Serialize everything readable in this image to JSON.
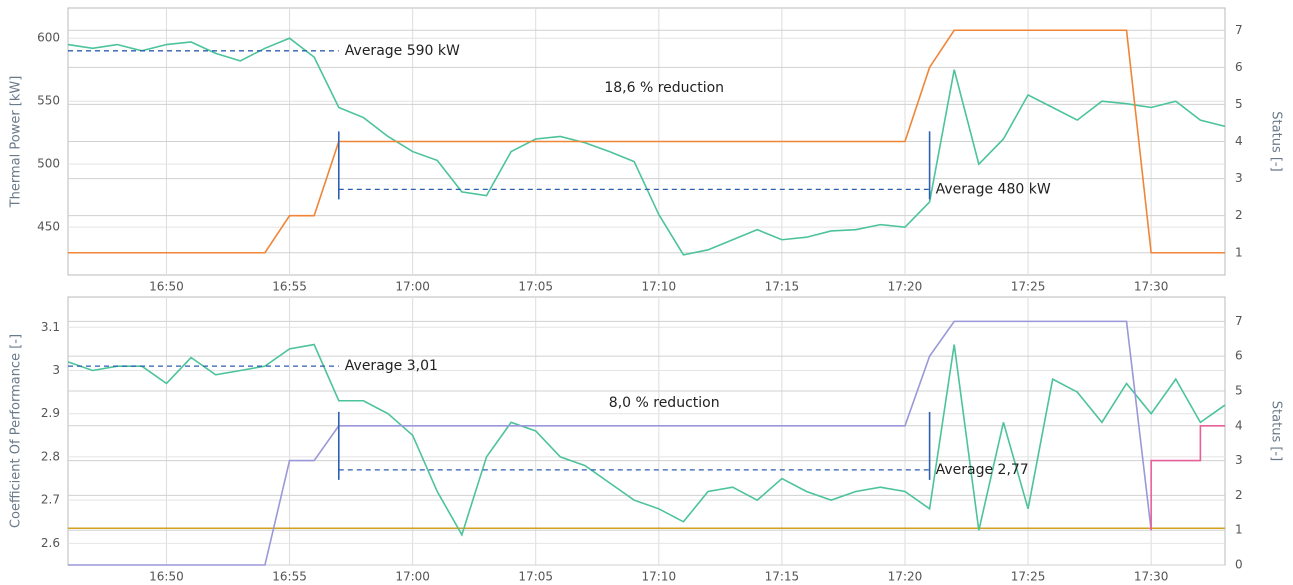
{
  "chart_data": [
    {
      "type": "line",
      "ylabel": "Thermal Power [kW]",
      "y2label": "Status [-]",
      "grid": true,
      "xlim": [
        "16:46",
        "17:33"
      ],
      "xticks": [
        "16:50",
        "16:55",
        "17:00",
        "17:05",
        "17:10",
        "17:15",
        "17:20",
        "17:25",
        "17:30"
      ],
      "ylim": [
        412,
        624
      ],
      "yticks": [
        450,
        500,
        550,
        600
      ],
      "y2lim": [
        0.4,
        7.6
      ],
      "y2ticks": [
        1,
        2,
        3,
        4,
        5,
        6,
        7
      ],
      "series": [
        {
          "color": "#4cc39a",
          "x": [
            "16:46",
            "16:47",
            "16:48",
            "16:49",
            "16:50",
            "16:51",
            "16:52",
            "16:53",
            "16:54",
            "16:55",
            "16:56",
            "16:57",
            "16:58",
            "16:59",
            "17:00",
            "17:01",
            "17:02",
            "17:03",
            "17:04",
            "17:05",
            "17:06",
            "17:07",
            "17:08",
            "17:09",
            "17:10",
            "17:11",
            "17:12",
            "17:13",
            "17:14",
            "17:15",
            "17:16",
            "17:17",
            "17:18",
            "17:19",
            "17:20",
            "17:21",
            "17:22",
            "17:23",
            "17:24",
            "17:25",
            "17:26",
            "17:27",
            "17:28",
            "17:29",
            "17:30",
            "17:31",
            "17:32",
            "17:33"
          ],
          "values": [
            595,
            592,
            595,
            590,
            595,
            597,
            588,
            582,
            592,
            600,
            585,
            545,
            537,
            522,
            510,
            503,
            478,
            475,
            510,
            520,
            522,
            517,
            510,
            502,
            460,
            428,
            432,
            440,
            448,
            440,
            442,
            447,
            448,
            452,
            450,
            470,
            575,
            500,
            520,
            555,
            545,
            535,
            550,
            548,
            545,
            550,
            535,
            530
          ]
        },
        {
          "color": "#f08537",
          "axis": "y2",
          "x": [
            "16:46",
            "16:54",
            "16:55",
            "16:56",
            "16:57",
            "17:20",
            "17:21",
            "17:22",
            "17:29",
            "17:30",
            "17:33"
          ],
          "values": [
            1,
            1,
            2,
            2,
            4,
            4,
            6,
            7,
            7,
            1,
            1
          ]
        }
      ],
      "annotations": [
        {
          "text": "Average 590 kW",
          "value": 590,
          "x": [
            "16:46",
            "16:57"
          ]
        },
        {
          "text": "Average 480 kW",
          "value": 480,
          "x": [
            "16:57",
            "17:21"
          ]
        },
        {
          "text": "18,6 % reduction"
        }
      ]
    },
    {
      "type": "line",
      "ylabel": "Coefficient Of Performance [-]",
      "y2label": "Status [-]",
      "grid": true,
      "xlim": [
        "16:46",
        "17:33"
      ],
      "xticks": [
        "16:50",
        "16:55",
        "17:00",
        "17:05",
        "17:10",
        "17:15",
        "17:20",
        "17:25",
        "17:30"
      ],
      "ylim": [
        2.55,
        3.17
      ],
      "yticks": [
        2.6,
        2.7,
        2.8,
        2.9,
        3,
        3.1
      ],
      "y2lim": [
        0,
        7.7
      ],
      "y2ticks": [
        0,
        1,
        2,
        3,
        4,
        5,
        6,
        7
      ],
      "series": [
        {
          "color": "#d4a020",
          "x": [
            "16:46",
            "17:33"
          ],
          "values": [
            2.635,
            2.635
          ]
        },
        {
          "color": "#4cc39a",
          "x": [
            "16:46",
            "16:47",
            "16:48",
            "16:49",
            "16:50",
            "16:51",
            "16:52",
            "16:53",
            "16:54",
            "16:55",
            "16:56",
            "16:57",
            "16:58",
            "16:59",
            "17:00",
            "17:01",
            "17:02",
            "17:03",
            "17:04",
            "17:05",
            "17:06",
            "17:07",
            "17:08",
            "17:09",
            "17:10",
            "17:11",
            "17:12",
            "17:13",
            "17:14",
            "17:15",
            "17:16",
            "17:17",
            "17:18",
            "17:19",
            "17:20",
            "17:21",
            "17:22",
            "17:23",
            "17:24",
            "17:25",
            "17:26",
            "17:27",
            "17:28",
            "17:29",
            "17:30",
            "17:31",
            "17:32",
            "17:33"
          ],
          "values": [
            3.02,
            3.0,
            3.01,
            3.01,
            2.97,
            3.03,
            2.99,
            3.0,
            3.01,
            3.05,
            3.06,
            2.93,
            2.93,
            2.9,
            2.85,
            2.72,
            2.62,
            2.8,
            2.88,
            2.86,
            2.8,
            2.78,
            2.74,
            2.7,
            2.68,
            2.65,
            2.72,
            2.73,
            2.7,
            2.75,
            2.72,
            2.7,
            2.72,
            2.73,
            2.72,
            2.68,
            3.06,
            2.63,
            2.88,
            2.68,
            2.98,
            2.95,
            2.88,
            2.97,
            2.9,
            2.98,
            2.88,
            2.92
          ]
        },
        {
          "color": "#9a98d8",
          "axis": "y2",
          "x": [
            "16:46",
            "16:54",
            "16:55",
            "16:56",
            "16:57",
            "17:20",
            "17:21",
            "17:22",
            "17:29",
            "17:30"
          ],
          "values": [
            0,
            0,
            3,
            3,
            4,
            4,
            6,
            7,
            7,
            1
          ]
        },
        {
          "color": "#e8609a",
          "axis": "y2",
          "x": [
            "17:30",
            "17:30",
            "17:32",
            "17:32",
            "17:33"
          ],
          "values": [
            1,
            3,
            3,
            4,
            4
          ]
        }
      ],
      "annotations": [
        {
          "text": "Average 3,01",
          "value": 3.01,
          "x": [
            "16:46",
            "16:57"
          ]
        },
        {
          "text": "Average 2,77",
          "value": 2.77,
          "x": [
            "16:57",
            "17:21"
          ]
        },
        {
          "text": "8,0 % reduction"
        }
      ]
    }
  ]
}
